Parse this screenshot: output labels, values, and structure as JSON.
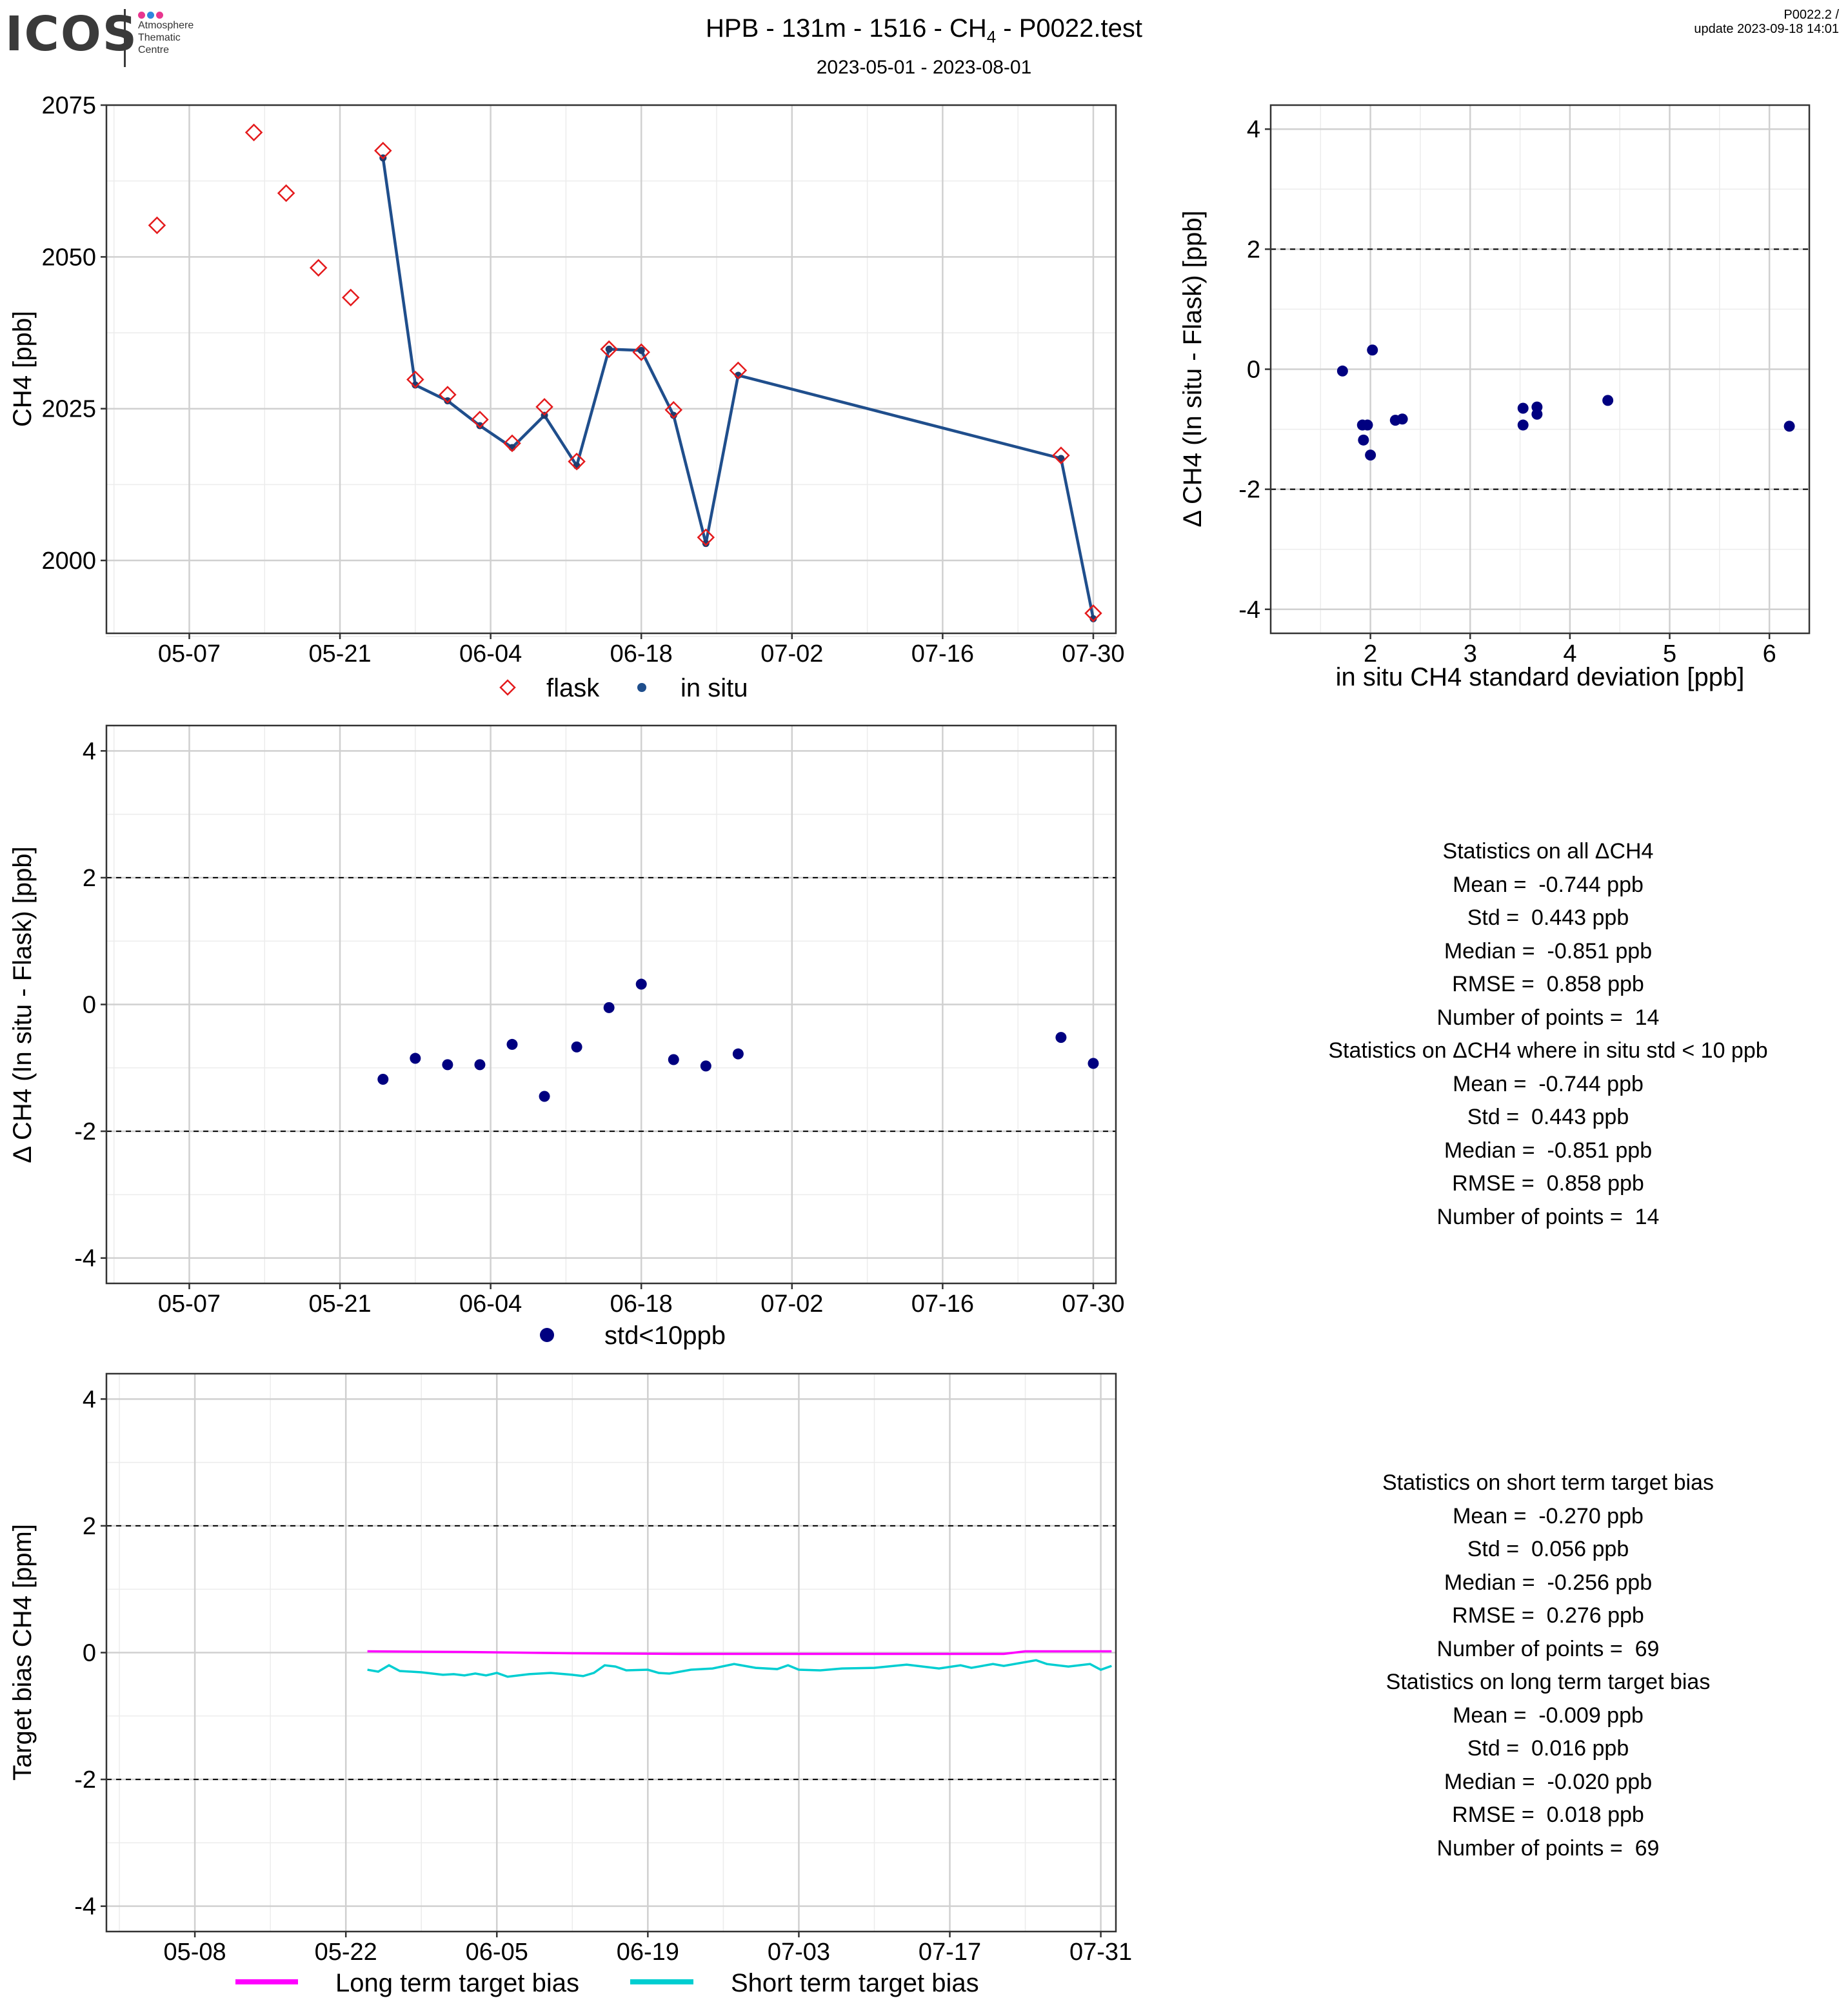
{
  "header": {
    "logo": "ICOS",
    "logo_sub": [
      "Atmosphere",
      "Thematic",
      "Centre"
    ],
    "title_pre": "HPB - 131m - 1516 - CH",
    "title_sub": "4",
    "title_post": " - P0022.test",
    "subtitle": "2023-05-01 - 2023-08-01",
    "version": "P0022.2 /",
    "update": "update  2023-09-18 14:01"
  },
  "colors": {
    "flask": "#e41a1c",
    "insitu_line": "#1f4e8c",
    "insitu_point": "#1f3c6e",
    "delta_point": "#000080",
    "long_term": "#ff00ff",
    "short_term": "#00ced1",
    "logo_dots": [
      "#e8368f",
      "#2e86de",
      "#e8368f"
    ]
  },
  "chart_data": [
    {
      "id": "timeseries",
      "type": "line",
      "xlabel": "",
      "ylabel": "CH4 [ppb]",
      "x_ticks": [
        "05-07",
        "05-21",
        "06-04",
        "06-18",
        "07-02",
        "07-16",
        "07-30"
      ],
      "ylim": [
        1988,
        2075
      ],
      "y_ticks": [
        2000,
        2025,
        2050,
        2075
      ],
      "legend": [
        "flask",
        "in situ"
      ],
      "legend_position": "bottom",
      "grid": true,
      "series": [
        {
          "name": "flask",
          "points": [
            [
              "05-04",
              2055.2
            ],
            [
              "05-13",
              2070.5
            ],
            [
              "05-16",
              2060.5
            ],
            [
              "05-19",
              2048.2
            ],
            [
              "05-22",
              2043.3
            ],
            [
              "05-25",
              2067.5
            ],
            [
              "05-28",
              2029.8
            ],
            [
              "05-31",
              2027.3
            ],
            [
              "06-03",
              2023.2
            ],
            [
              "06-06",
              2019.3
            ],
            [
              "06-09",
              2025.3
            ],
            [
              "06-12",
              2016.3
            ],
            [
              "06-15",
              2034.8
            ],
            [
              "06-18",
              2034.3
            ],
            [
              "06-21",
              2024.8
            ],
            [
              "06-24",
              2003.8
            ],
            [
              "06-27",
              2031.3
            ],
            [
              "07-27",
              2017.3
            ],
            [
              "07-30",
              1991.3
            ]
          ]
        },
        {
          "name": "in situ",
          "points": [
            [
              "05-25",
              2066.3
            ],
            [
              "05-28",
              2028.9
            ],
            [
              "05-31",
              2026.3
            ],
            [
              "06-03",
              2022.2
            ],
            [
              "06-06",
              2018.6
            ],
            [
              "06-09",
              2023.9
            ],
            [
              "06-12",
              2015.6
            ],
            [
              "06-15",
              2034.8
            ],
            [
              "06-18",
              2034.6
            ],
            [
              "06-21",
              2023.9
            ],
            [
              "06-24",
              2002.8
            ],
            [
              "06-27",
              2030.5
            ],
            [
              "07-27",
              2016.8
            ],
            [
              "07-30",
              1990.4
            ]
          ]
        }
      ]
    },
    {
      "id": "scatter-std",
      "type": "scatter",
      "xlabel": "in situ CH4 standard deviation [ppb]",
      "ylabel": "Δ CH4 (In situ - Flask) [ppb]",
      "xlim": [
        1.0,
        6.4
      ],
      "x_ticks": [
        2,
        3,
        4,
        5,
        6
      ],
      "ylim": [
        -4.4,
        4.4
      ],
      "y_ticks": [
        -4,
        -2,
        0,
        2,
        4
      ],
      "hlines": [
        2,
        -2
      ],
      "grid": true,
      "points": [
        [
          1.72,
          -0.03
        ],
        [
          1.92,
          -0.93
        ],
        [
          1.93,
          -1.18
        ],
        [
          1.97,
          -0.93
        ],
        [
          2.0,
          -1.43
        ],
        [
          2.02,
          0.32
        ],
        [
          2.25,
          -0.85
        ],
        [
          2.32,
          -0.83
        ],
        [
          3.53,
          -0.65
        ],
        [
          3.53,
          -0.93
        ],
        [
          3.67,
          -0.63
        ],
        [
          3.67,
          -0.75
        ],
        [
          4.38,
          -0.52
        ],
        [
          6.2,
          -0.95
        ]
      ]
    },
    {
      "id": "delta-timeseries",
      "type": "scatter",
      "xlabel": "",
      "ylabel": "Δ CH4 (In situ - Flask) [ppb]",
      "x_ticks": [
        "05-07",
        "05-21",
        "06-04",
        "06-18",
        "07-02",
        "07-16",
        "07-30"
      ],
      "ylim": [
        -4.4,
        4.4
      ],
      "y_ticks": [
        -4,
        -2,
        0,
        2,
        4
      ],
      "hlines": [
        2,
        -2
      ],
      "legend": [
        "std<10ppb"
      ],
      "legend_position": "bottom",
      "grid": true,
      "points": [
        [
          "05-25",
          -1.18
        ],
        [
          "05-28",
          -0.85
        ],
        [
          "05-31",
          -0.95
        ],
        [
          "06-03",
          -0.95
        ],
        [
          "06-06",
          -0.63
        ],
        [
          "06-09",
          -1.45
        ],
        [
          "06-12",
          -0.67
        ],
        [
          "06-15",
          -0.05
        ],
        [
          "06-18",
          0.32
        ],
        [
          "06-21",
          -0.87
        ],
        [
          "06-24",
          -0.97
        ],
        [
          "06-27",
          -0.78
        ],
        [
          "07-27",
          -0.52
        ],
        [
          "07-30",
          -0.93
        ]
      ]
    },
    {
      "id": "target-bias",
      "type": "line",
      "xlabel": "",
      "ylabel": "Target bias CH4 [ppm]",
      "x_ticks": [
        "05-08",
        "05-22",
        "06-05",
        "06-19",
        "07-03",
        "07-17",
        "07-31"
      ],
      "ylim": [
        -4.4,
        4.4
      ],
      "y_ticks": [
        -4,
        -2,
        0,
        2,
        4
      ],
      "hlines": [
        2,
        -2
      ],
      "legend": [
        "Long term target bias",
        "Short term target bias"
      ],
      "legend_position": "bottom",
      "grid": true,
      "series": [
        {
          "name": "Long term target bias",
          "points": [
            [
              "05-24",
              0.02
            ],
            [
              "06-02",
              0.01
            ],
            [
              "06-12",
              -0.01
            ],
            [
              "06-22",
              -0.02
            ],
            [
              "07-02",
              -0.02
            ],
            [
              "07-12",
              -0.02
            ],
            [
              "07-22",
              -0.02
            ],
            [
              "07-24",
              0.02
            ],
            [
              "08-01",
              0.02
            ]
          ]
        },
        {
          "name": "Short term target bias",
          "points": [
            [
              "05-24",
              -0.27
            ],
            [
              "05-25",
              -0.3
            ],
            [
              "05-26",
              -0.2
            ],
            [
              "05-27",
              -0.29
            ],
            [
              "05-29",
              -0.31
            ],
            [
              "05-31",
              -0.35
            ],
            [
              "06-01",
              -0.34
            ],
            [
              "06-02",
              -0.36
            ],
            [
              "06-03",
              -0.33
            ],
            [
              "06-04",
              -0.36
            ],
            [
              "06-05",
              -0.32
            ],
            [
              "06-06",
              -0.38
            ],
            [
              "06-08",
              -0.34
            ],
            [
              "06-10",
              -0.32
            ],
            [
              "06-12",
              -0.35
            ],
            [
              "06-13",
              -0.37
            ],
            [
              "06-14",
              -0.32
            ],
            [
              "06-15",
              -0.2
            ],
            [
              "06-16",
              -0.22
            ],
            [
              "06-17",
              -0.28
            ],
            [
              "06-19",
              -0.27
            ],
            [
              "06-20",
              -0.32
            ],
            [
              "06-21",
              -0.33
            ],
            [
              "06-23",
              -0.27
            ],
            [
              "06-25",
              -0.25
            ],
            [
              "06-27",
              -0.18
            ],
            [
              "06-29",
              -0.24
            ],
            [
              "07-01",
              -0.26
            ],
            [
              "07-02",
              -0.2
            ],
            [
              "07-03",
              -0.27
            ],
            [
              "07-05",
              -0.28
            ],
            [
              "07-07",
              -0.25
            ],
            [
              "07-10",
              -0.24
            ],
            [
              "07-13",
              -0.19
            ],
            [
              "07-16",
              -0.25
            ],
            [
              "07-18",
              -0.2
            ],
            [
              "07-19",
              -0.24
            ],
            [
              "07-21",
              -0.18
            ],
            [
              "07-22",
              -0.21
            ],
            [
              "07-25",
              -0.12
            ],
            [
              "07-26",
              -0.18
            ],
            [
              "07-28",
              -0.22
            ],
            [
              "07-30",
              -0.18
            ],
            [
              "07-31",
              -0.27
            ],
            [
              "08-01",
              -0.21
            ]
          ]
        }
      ]
    }
  ],
  "stats": {
    "delta": [
      "Statistics on all ΔCH4",
      "Mean =  -0.744 ppb",
      "Std =  0.443 ppb",
      "Median =  -0.851 ppb",
      "RMSE =  0.858 ppb",
      "Number of points =  14",
      "",
      "Statistics on ΔCH4 where in situ std < 10 ppb",
      "Mean =  -0.744 ppb",
      "Std =  0.443 ppb",
      "Median =  -0.851 ppb",
      "RMSE =  0.858 ppb",
      "Number of points =  14"
    ],
    "target": [
      "Statistics on short term target bias",
      "Mean =  -0.270 ppb",
      "Std =  0.056 ppb",
      "Median =  -0.256 ppb",
      "RMSE =  0.276 ppb",
      "Number of points =  69",
      "",
      "Statistics on long term target bias",
      "Mean =  -0.009 ppb",
      "Std =  0.016 ppb",
      "Median =  -0.020 ppb",
      "RMSE =  0.018 ppb",
      "Number of points =  69"
    ]
  }
}
